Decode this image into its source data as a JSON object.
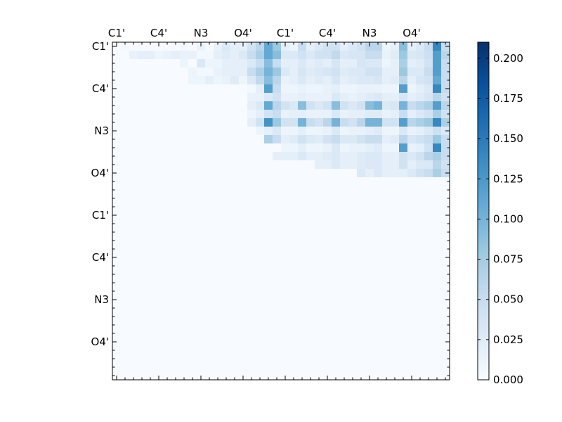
{
  "chart_data": {
    "type": "heatmap",
    "title": "",
    "xlabel": "",
    "ylabel": "",
    "rows": 40,
    "cols": 40,
    "x_tick_labels": [
      "C1'",
      "C4'",
      "N3",
      "O4'",
      "C1'",
      "C4'",
      "N3",
      "O4'"
    ],
    "y_tick_labels": [
      "C1'",
      "C4'",
      "N3",
      "O4'",
      "C1'",
      "C4'",
      "N3",
      "O4'"
    ],
    "label_tick_indices": [
      0,
      5,
      10,
      15,
      20,
      25,
      30,
      35
    ],
    "colorbar": {
      "range": [
        0.0,
        0.21
      ],
      "ticks": [
        "0.000",
        "0.025",
        "0.050",
        "0.075",
        "0.100",
        "0.125",
        "0.150",
        "0.175",
        "0.200"
      ],
      "tick_values": [
        0.0,
        0.025,
        0.05,
        0.075,
        0.1,
        0.125,
        0.15,
        0.175,
        0.2
      ]
    },
    "colormap": [
      "#f7fbff",
      "#deebf7",
      "#c6dbef",
      "#9ecae1",
      "#6baed6",
      "#4292c6",
      "#2171b5",
      "#08519c",
      "#08306b"
    ],
    "data_rows": [
      "0,0.005,0,0,0,0,0,0,0.005,0,0.012,0,0.015,0.03,0.02,0.02,0.04,0.06,0.11,0.08,0.02,0.01,0.05,0.02,0.03,0.04,0.04,0.02,0.03,0.04,0.06,0.06,0.01,0.02,0.09,0.02,0.03,0.05,0.14,0.05",
      "0,0,0.015,0.02,0.02,0.01,0.015,0.02,0.015,0.015,0.005,0.005,0.02,0.025,0.02,0.03,0.05,0.07,0.11,0.09,0.03,0.03,0.04,0.03,0.04,0.04,0.055,0.03,0.035,0.035,0.05,0.05,0.015,0.025,0.08,0.03,0.035,0.045,0.12,0.06",
      "0,0,0,0,0,0,0,0,0.01,0,0.03,0.01,0.01,0.02,0.02,0.02,0.03,0.05,0.09,0.05,0.02,0.02,0.03,0.02,0.025,0.02,0.035,0.02,0.02,0.035,0.03,0.03,0.01,0.02,0.07,0.02,0.025,0.04,0.12,0.05",
      "0,0,0,0,0,0,0,0,0,0.01,0.005,0.005,0.015,0.02,0.02,0.02,0.05,0.07,0.1,0.08,0.03,0.02,0.035,0.025,0.03,0.035,0.04,0.025,0.03,0.03,0.04,0.04,0.02,0.02,0.08,0.03,0.03,0.05,0.12,0.05",
      "0,0,0,0,0,0,0,0,0,0.01,0.01,0.02,0.01,0.015,0.025,0.01,0.03,0.055,0.09,0.06,0.015,0.02,0.03,0.02,0.025,0.02,0.035,0.02,0.025,0.03,0.03,0.035,0.02,0.025,0.06,0.02,0.035,0.04,0.11,0.05",
      "0,0,0,0,0,0,0,0,0,0,0,0,0,0,0,0,0.005,0.02,0.12,0.05,0.01,0.01,0.015,0.01,0.01,0.015,0.02,0.01,0.01,0.015,0.015,0.015,0.01,0.01,0.12,0.01,0.02,0.03,0.14,0.05",
      "0,0,0,0,0,0,0,0,0,0,0,0,0,0,0,0,0.015,0.015,0.03,0.04,0.015,0.015,0.02,0.015,0.015,0.015,0.03,0.02,0.015,0.02,0.025,0.03,0.02,0.02,0.035,0.02,0.025,0.035,0.06,0.04",
      "0,0,0,0,0,0,0,0,0,0,0,0,0,0,0,0,0.02,0.03,0.11,0.06,0.04,0.03,0.09,0.04,0.03,0.04,0.09,0.04,0.03,0.04,0.09,0.1,0.03,0.035,0.1,0.05,0.06,0.07,0.12,0.06",
      "0,0,0,0,0,0,0,0,0,0,0,0,0,0,0,0,0.01,0.02,0.04,0.05,0.015,0.02,0.02,0.015,0.015,0.015,0.03,0.015,0.02,0.02,0.025,0.025,0.015,0.02,0.05,0.02,0.03,0.04,0.07,0.04",
      "0,0,0,0,0,0,0,0,0,0,0,0,0,0,0,0,0.02,0.04,0.13,0.08,0.04,0.04,0.1,0.05,0.04,0.06,0.1,0.05,0.04,0.06,0.1,0.1,0.04,0.04,0.12,0.06,0.07,0.08,0.14,0.07",
      "0,0,0,0,0,0,0,0,0,0,0,0,0,0,0,0,0,0.01,0.02,0.03,0.01,0.01,0.02,0.01,0.01,0.015,0.03,0.01,0.015,0.015,0.02,0.025,0.01,0.01,0.03,0.015,0.02,0.03,0.045,0.03",
      "0,0,0,0,0,0,0,0,0,0,0,0,0,0,0,0,0,0,0.07,0.05,0.02,0.025,0.04,0.03,0.025,0.04,0.05,0.03,0.03,0.04,0.05,0.05,0.02,0.025,0.06,0.035,0.04,0.05,0.08,0.05",
      "0,0,0,0,0,0,0,0,0,0,0,0,0,0,0,0,0,0,0,0,0.01,0.01,0.02,0.01,0.01,0.015,0.03,0.01,0.015,0.015,0.02,0.025,0.01,0.01,0.12,0.015,0.02,0.04,0.14,0.05",
      "0,0,0,0,0,0,0,0,0,0,0,0,0,0,0,0,0,0,0,0.02,0.02,0.02,0.03,0.02,0.02,0.025,0.03,0.02,0.02,0.025,0.03,0.03,0.02,0.02,0.04,0.03,0.04,0.06,0.07,0.05",
      "0,0,0,0,0,0,0,0,0,0,0,0,0,0,0,0,0,0,0,0,0,0,0,0,0.02,0.02,0.03,0.02,0.02,0.025,0.03,0.03,0.02,0.02,0.04,0.02,0.03,0.03,0.06,0.04",
      "0,0,0,0,0,0,0,0,0,0,0,0,0,0,0,0,0,0,0,0,0,0,0,0,0,0,0,0,0,0.03,0.02,0.03,0.02,0.02,0.02,0.03,0.04,0.05,0.07,0.05",
      "0,0,0,0,0,0,0,0,0,0,0,0,0,0,0,0,0,0,0,0,0,0,0,0,0,0,0,0,0,0,0,0,0,0,0,0,0,0,0,0",
      "0,0,0,0,0,0,0,0,0,0,0,0,0,0,0,0,0,0,0,0,0,0,0,0,0,0,0,0,0,0,0,0,0,0,0,0,0,0,0,0",
      "0,0,0,0,0,0,0,0,0,0,0,0,0,0,0,0,0,0,0,0,0,0,0,0,0,0,0,0,0,0,0,0,0,0,0,0,0,0,0,0",
      "0,0,0,0,0,0,0,0,0,0,0,0,0,0,0,0,0,0,0,0,0,0,0,0,0,0,0,0,0,0,0,0,0,0,0,0,0,0,0,0",
      "0,0,0,0,0,0,0,0,0,0,0,0,0,0,0,0,0,0,0,0,0,0,0,0,0,0,0,0,0,0,0,0,0,0,0,0,0,0,0,0",
      "0,0,0,0,0,0,0,0,0,0,0,0,0,0,0,0,0,0,0,0,0,0,0,0,0,0,0,0,0,0,0,0,0,0,0,0,0,0,0,0",
      "0,0,0,0,0,0,0,0,0,0,0,0,0,0,0,0,0,0,0,0,0,0,0,0,0,0,0,0,0,0,0,0,0,0,0,0,0,0,0,0",
      "0,0,0,0,0,0,0,0,0,0,0,0,0,0,0,0,0,0,0,0,0,0,0,0,0,0,0,0,0,0,0,0,0,0,0,0,0,0,0,0",
      "0,0,0,0,0,0,0,0,0,0,0,0,0,0,0,0,0,0,0,0,0,0,0,0,0,0,0,0,0,0,0,0,0,0,0,0,0,0,0,0",
      "0,0,0,0,0,0,0,0,0,0,0,0,0,0,0,0,0,0,0,0,0,0,0,0,0,0,0,0,0,0,0,0,0,0,0,0,0,0,0,0",
      "0,0,0,0,0,0,0,0,0,0,0,0,0,0,0,0,0,0,0,0,0,0,0,0,0,0,0,0,0,0,0,0,0,0,0,0,0,0,0,0",
      "0,0,0,0,0,0,0,0,0,0,0,0,0,0,0,0,0,0,0,0,0,0,0,0,0,0,0,0,0,0,0,0,0,0,0,0,0,0,0,0",
      "0,0,0,0,0,0,0,0,0,0,0,0,0,0,0,0,0,0,0,0,0,0,0,0,0,0,0,0,0,0,0,0,0,0,0,0,0,0,0,0",
      "0,0,0,0,0,0,0,0,0,0,0,0,0,0,0,0,0,0,0,0,0,0,0,0,0,0,0,0,0,0,0,0,0,0,0,0,0,0,0,0",
      "0,0,0,0,0,0,0,0,0,0,0,0,0,0,0,0,0,0,0,0,0,0,0,0,0,0,0,0,0,0,0,0,0,0,0,0,0,0,0,0",
      "0,0,0,0,0,0,0,0,0,0,0,0,0,0,0,0,0,0,0,0,0,0,0,0,0,0,0,0,0,0,0,0,0,0,0,0,0,0,0,0",
      "0,0,0,0,0,0,0,0,0,0,0,0,0,0,0,0,0,0,0,0,0,0,0,0,0,0,0,0,0,0,0,0,0,0,0,0,0,0,0,0",
      "0,0,0,0,0,0,0,0,0,0,0,0,0,0,0,0,0,0,0,0,0,0,0,0,0,0,0,0,0,0,0,0,0,0,0,0,0,0,0,0",
      "0,0,0,0,0,0,0,0,0,0,0,0,0,0,0,0,0,0,0,0,0,0,0,0,0,0,0,0,0,0,0,0,0,0,0,0,0,0,0,0",
      "0,0,0,0,0,0,0,0,0,0,0,0,0,0,0,0,0,0,0,0,0,0,0,0,0,0,0,0,0,0,0,0,0,0,0,0,0,0,0,0",
      "0,0,0,0,0,0,0,0,0,0,0,0,0,0,0,0,0,0,0,0,0,0,0,0,0,0,0,0,0,0,0,0,0,0,0,0,0,0,0,0",
      "0,0,0,0,0,0,0,0,0,0,0,0,0,0,0,0,0,0,0,0,0,0,0,0,0,0,0,0,0,0,0,0,0,0,0,0,0,0,0,0",
      "0,0,0,0,0,0,0,0,0,0,0,0,0,0,0,0,0,0,0,0,0,0,0,0,0,0,0,0,0,0,0,0,0,0,0,0,0,0,0,0",
      "0,0,0,0,0,0,0,0,0,0,0,0,0,0,0,0,0,0,0,0,0,0,0,0,0,0,0,0,0,0,0,0,0,0,0,0,0,0,0,0"
    ]
  }
}
